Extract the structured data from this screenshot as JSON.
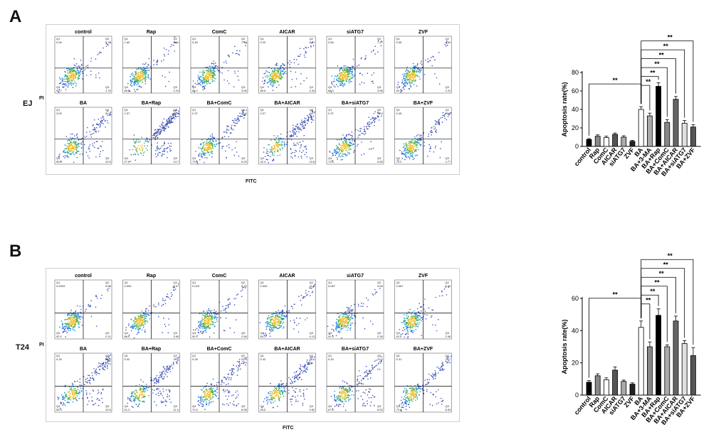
{
  "panels": [
    {
      "letter": "A",
      "cell_line": "EJ",
      "xlabel": "FITC",
      "ylabel": "PI",
      "plots": [
        {
          "title": "control",
          "q1": "0.94",
          "q2": "6.75",
          "q3": "1.76",
          "q4": "90.7"
        },
        {
          "title": "Rap",
          "q1": "1.60",
          "q2": "8.94",
          "q3": "2.23",
          "q4": "86.8"
        },
        {
          "title": "ComC",
          "q1": "0.45",
          "q2": "7.65",
          "q3": "3.69",
          "q4": "88.2"
        },
        {
          "title": "AICAR",
          "q1": "0.20",
          "q2": "8.31",
          "q3": "4.43",
          "q4": "86.6"
        },
        {
          "title": "siATG7",
          "q1": "0.65",
          "q2": "7.47",
          "q3": "3.65",
          "q4": "88.3"
        },
        {
          "title": "ZVF",
          "q1": "0.55",
          "q2": "4.90",
          "q3": "2.22",
          "q4": "92.3"
        },
        {
          "title": "BA",
          "q1": "3.09",
          "q2": "30.6",
          "q3": "10.5",
          "q4": "55.8"
        },
        {
          "title": "BA+Rap",
          "q1": "1.57",
          "q2": "56.1",
          "q3": "14.7",
          "q4": "27.6"
        },
        {
          "title": "BA+ComC",
          "q1": "0.37",
          "q2": "20.6",
          "q3": "5.20",
          "q4": "73.8"
        },
        {
          "title": "BA+AICAR",
          "q1": "2.07",
          "q2": "44.7",
          "q3": "10.8",
          "q4": "42.4"
        },
        {
          "title": "BA+siATG7",
          "q1": "0.37",
          "q2": "21.4",
          "q3": "5.65",
          "q4": "72.6"
        },
        {
          "title": "BA+ZVF",
          "q1": "0.49",
          "q2": "20.6",
          "q3": "4.77",
          "q4": "74.2"
        }
      ]
    },
    {
      "letter": "B",
      "cell_line": "T24",
      "xlabel": "FITC",
      "ylabel": "PI",
      "plots": [
        {
          "title": "control",
          "q1": "0.0003",
          "q2": "5.88",
          "q3": "2.21",
          "q4": "92.0"
        },
        {
          "title": "Rap",
          "q1": "0.005",
          "q2": "8.07",
          "q3": "3.95",
          "q4": "88.0"
        },
        {
          "title": "ComC",
          "q1": "0.029",
          "q2": "6.75",
          "q3": "2.59",
          "q4": "90.7"
        },
        {
          "title": "AICAR",
          "q1": "0.040",
          "q2": "11.6",
          "q3": "4.13",
          "q4": "84.1"
        },
        {
          "title": "siATG7",
          "q1": "0.067",
          "q2": "5.84",
          "q3": "2.39",
          "q4": "91.9"
        },
        {
          "title": "ZVF",
          "q1": "0.067",
          "q2": "5.39",
          "q3": "2.06",
          "q4": "92.5"
        },
        {
          "title": "BA",
          "q1": "0.25",
          "q2": "33.6",
          "q3": "10.6",
          "q4": "55.5"
        },
        {
          "title": "BA+Rap",
          "q1": "0.32",
          "q2": "37.4",
          "q3": "11.0",
          "q4": "51.3"
        },
        {
          "title": "BA+ComC",
          "q1": "0.28",
          "q2": "20.6",
          "q3": "8.55",
          "q4": "70.3"
        },
        {
          "title": "BA+AICAR",
          "q1": "0.42",
          "q2": "36.6",
          "q3": "9.52",
          "q4": "53.5"
        },
        {
          "title": "BA+siATG7",
          "q1": "0.20",
          "q2": "23.2",
          "q3": "8.52",
          "q4": "67.6"
        },
        {
          "title": "BA+ZVF",
          "q1": "0.31",
          "q2": "20.7",
          "q3": "8.53",
          "q4": "70.4"
        }
      ]
    }
  ],
  "chart_data": [
    {
      "type": "bar",
      "ylabel": "Apoptosis rate(%)",
      "ylim": [
        0,
        80
      ],
      "yticks": [
        0,
        20,
        40,
        60,
        80
      ],
      "categories": [
        "control",
        "Rap",
        "ComC",
        "AICAR",
        "siATG7",
        "ZVF",
        "BA",
        "BA+3-MA",
        "BA+Rap",
        "BA+ComC",
        "BA+AICAR",
        "BA+siATG7",
        "BA+ZVF"
      ],
      "values": [
        7.5,
        11,
        9.5,
        13,
        10,
        5.5,
        40,
        33,
        65,
        26,
        51,
        25,
        21
      ],
      "errors": [
        1,
        1.5,
        1.5,
        1.5,
        1.5,
        1,
        3,
        3,
        4,
        3,
        3,
        3,
        2.5
      ],
      "colors": [
        "#000000",
        "#888888",
        "#ffffff",
        "#555555",
        "#aaaaaa",
        "#222222",
        "#ffffff",
        "#aaaaaa",
        "#000000",
        "#888888",
        "#666666",
        "#e0e0e0",
        "#555555"
      ],
      "significance": "**",
      "comparisons": [
        {
          "from": "control",
          "to": "BA",
          "label": "**"
        },
        {
          "from": "BA",
          "to": "BA+3-MA",
          "label": "**"
        },
        {
          "from": "BA",
          "to": "BA+Rap",
          "label": "**"
        },
        {
          "from": "BA",
          "to": "BA+ComC",
          "label": "**"
        },
        {
          "from": "BA",
          "to": "BA+AICAR",
          "label": "**"
        },
        {
          "from": "BA",
          "to": "BA+siATG7",
          "label": "**"
        },
        {
          "from": "BA",
          "to": "BA+ZVF",
          "label": "**"
        }
      ]
    },
    {
      "type": "bar",
      "ylabel": "Apoptosis rate(%)",
      "ylim": [
        0,
        60
      ],
      "yticks": [
        0,
        20,
        40,
        60
      ],
      "categories": [
        "control",
        "Rap",
        "ComC",
        "AICAR",
        "siATG7",
        "ZVF",
        "BA",
        "BA+3-MA",
        "BA+Rap",
        "BA+ComC",
        "BA+AICAR",
        "BA+siATG7",
        "BA+ZVF"
      ],
      "values": [
        8,
        12,
        9.5,
        15.5,
        8.5,
        6.8,
        42,
        30,
        49.5,
        30,
        46,
        32,
        24.5
      ],
      "errors": [
        1,
        1.2,
        1.2,
        2,
        0.8,
        0.8,
        4,
        3,
        4,
        1.2,
        3,
        1.8,
        5
      ],
      "colors": [
        "#000000",
        "#888888",
        "#ffffff",
        "#555555",
        "#aaaaaa",
        "#222222",
        "#ffffff",
        "#888888",
        "#000000",
        "#aaaaaa",
        "#666666",
        "#e0e0e0",
        "#555555"
      ],
      "significance": "**",
      "comparisons": [
        {
          "from": "control",
          "to": "BA",
          "label": "**"
        },
        {
          "from": "BA",
          "to": "BA+3-MA",
          "label": "**"
        },
        {
          "from": "BA",
          "to": "BA+Rap",
          "label": "**"
        },
        {
          "from": "BA",
          "to": "BA+ComC",
          "label": "**"
        },
        {
          "from": "BA",
          "to": "BA+AICAR",
          "label": "**"
        },
        {
          "from": "BA",
          "to": "BA+siATG7",
          "label": "**"
        },
        {
          "from": "BA",
          "to": "BA+ZVF",
          "label": "**"
        }
      ]
    }
  ]
}
